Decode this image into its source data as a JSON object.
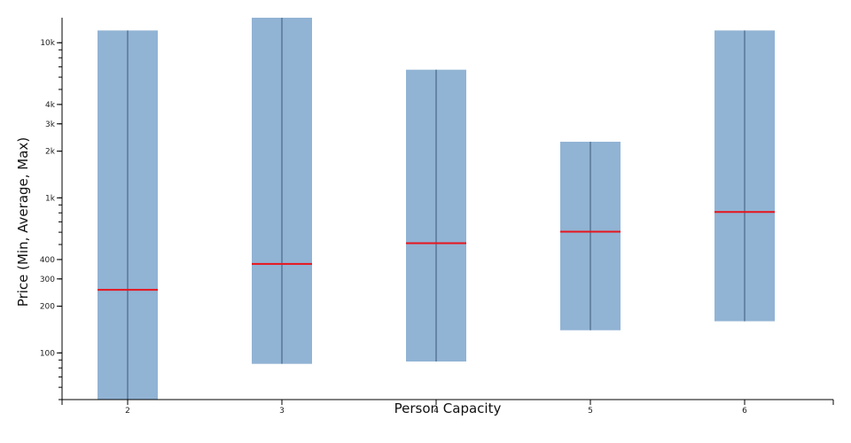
{
  "chart_data": {
    "type": "bar",
    "xlabel": "Person Capacity",
    "ylabel": "Price (Min, Average, Max)",
    "y_scale": "log",
    "ylim": [
      50,
      14500
    ],
    "categories": [
      "2",
      "3",
      "4",
      "5",
      "6"
    ],
    "series": [
      {
        "values": [
          {
            "min": 50,
            "avg": 255,
            "max": 12000
          },
          {
            "min": 85,
            "avg": 375,
            "max": 15000
          },
          {
            "min": 88,
            "avg": 510,
            "max": 6700
          },
          {
            "min": 140,
            "avg": 605,
            "max": 2300
          },
          {
            "min": 160,
            "avg": 810,
            "max": 12000
          }
        ]
      }
    ],
    "y_ticks": [
      {
        "value": 100,
        "label": "100"
      },
      {
        "value": 200,
        "label": "200"
      },
      {
        "value": 300,
        "label": "300"
      },
      {
        "value": 400,
        "label": "400"
      },
      {
        "value": 1000,
        "label": "1k"
      },
      {
        "value": 2000,
        "label": "2k"
      },
      {
        "value": 3000,
        "label": "3k"
      },
      {
        "value": 4000,
        "label": "4k"
      },
      {
        "value": 10000,
        "label": "10k"
      }
    ],
    "grid": false,
    "colors": {
      "range_bar": "#91b3d4",
      "range_line": "#3d5a78",
      "average_line": "#e8141c",
      "axis": "#000000"
    }
  }
}
